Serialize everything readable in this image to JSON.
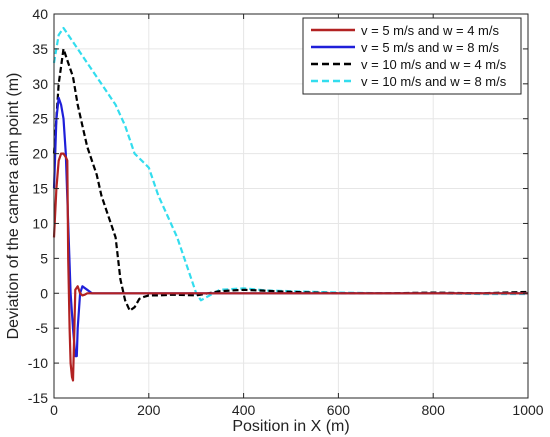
{
  "chart_data": {
    "type": "line",
    "title": "",
    "xlabel": "Position in X (m)",
    "ylabel": "Deviation of the camera aim point (m)",
    "xlim": [
      0,
      1000
    ],
    "ylim": [
      -15,
      40
    ],
    "xticks": [
      0,
      200,
      400,
      600,
      800,
      1000
    ],
    "yticks": [
      -15,
      -10,
      -5,
      0,
      5,
      10,
      15,
      20,
      25,
      30,
      35,
      40
    ],
    "xtick_labels": [
      "0",
      "200",
      "400",
      "600",
      "800",
      "1000"
    ],
    "ytick_labels": [
      "-15",
      "-10",
      "-5",
      "0",
      "5",
      "10",
      "15",
      "20",
      "25",
      "30",
      "35",
      "40"
    ],
    "grid": true,
    "legend_position": "top-right",
    "series": [
      {
        "name": "v = 5 m/s and w = 4 m/s",
        "color": "#b22222",
        "style": "solid",
        "x": [
          0,
          5,
          10,
          15,
          20,
          25,
          28,
          30,
          33,
          35,
          38,
          40,
          43,
          45,
          50,
          55,
          60,
          65,
          70,
          80,
          100,
          150,
          200,
          300,
          400,
          500,
          600,
          700,
          800,
          900,
          1000
        ],
        "y": [
          8,
          15,
          19,
          20,
          20,
          19.5,
          19,
          5,
          -5,
          -10,
          -12,
          -12.5,
          -5,
          0.5,
          1,
          0,
          -0.3,
          -0.2,
          0,
          0,
          0,
          0,
          0,
          0,
          0,
          0,
          0,
          0,
          0,
          0,
          0
        ]
      },
      {
        "name": "v = 5 m/s and w = 8 m/s",
        "color": "#1f1fd9",
        "style": "solid",
        "x": [
          0,
          5,
          10,
          15,
          20,
          25,
          30,
          35,
          40,
          45,
          48,
          50,
          55,
          60,
          70,
          80,
          100,
          150,
          200,
          300,
          400,
          500,
          600,
          700,
          800,
          900,
          1000
        ],
        "y": [
          15,
          25,
          28,
          27,
          25,
          20,
          10,
          0,
          -5,
          -9,
          -9,
          -5,
          0,
          1,
          0.5,
          0,
          0,
          0,
          0,
          0,
          0,
          0,
          0,
          0,
          0,
          0,
          0
        ]
      },
      {
        "name": "v = 10 m/s and w = 4 m/s",
        "color": "#000000",
        "style": "dashed",
        "x": [
          0,
          10,
          20,
          30,
          40,
          50,
          60,
          70,
          80,
          90,
          100,
          110,
          120,
          130,
          140,
          150,
          160,
          170,
          180,
          190,
          200,
          220,
          250,
          300,
          350,
          400,
          500,
          600,
          700,
          800,
          900,
          1000
        ],
        "y": [
          20,
          30,
          35,
          33,
          31,
          27,
          24,
          21,
          19,
          17,
          14,
          12,
          10,
          8,
          2,
          -1,
          -2.5,
          -2,
          -0.8,
          -0.5,
          -0.3,
          -0.3,
          -0.2,
          -0.3,
          0.3,
          0.5,
          0.2,
          0,
          0,
          0.1,
          0,
          0.2
        ]
      },
      {
        "name": "v = 10 m/s and w = 8 m/s",
        "color": "#33ddee",
        "style": "dashed",
        "x": [
          0,
          10,
          20,
          30,
          40,
          50,
          70,
          100,
          130,
          150,
          170,
          200,
          220,
          240,
          260,
          280,
          300,
          310,
          350,
          400,
          450,
          500,
          600,
          700,
          800,
          900,
          1000
        ],
        "y": [
          33,
          37,
          38,
          37,
          36,
          35,
          33,
          30,
          27,
          24,
          20,
          18,
          14,
          11,
          8,
          4,
          0,
          -1,
          0.5,
          0.7,
          0.4,
          0.3,
          0.1,
          0,
          0,
          -0.1,
          -0.1
        ]
      }
    ]
  }
}
